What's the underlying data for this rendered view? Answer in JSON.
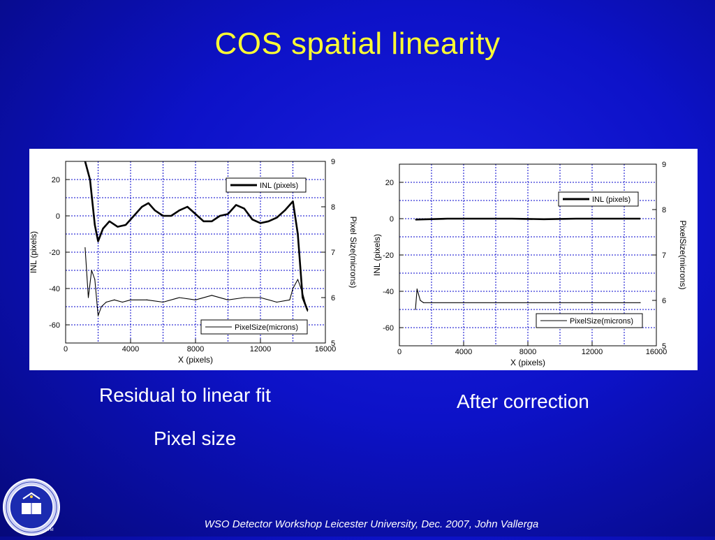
{
  "slide": {
    "title": "COS spatial linearity",
    "caption_left_1": "Residual to linear fit",
    "caption_left_2": "Pixel size",
    "caption_right": "After correction",
    "footer": "WSO Detector Workshop  Leicester University, Dec. 2007, John Vallerga",
    "colors": {
      "title": "#ffff33",
      "text": "#ffffff",
      "background": "#0d12c8",
      "grid": "#0000cc"
    }
  },
  "chart_data": [
    {
      "type": "line",
      "xlabel": "X (pixels)",
      "ylabel": "INL (pixels)",
      "y2label": "Pixel Size(microns)",
      "xlim": [
        0,
        16000
      ],
      "ylim": [
        -70,
        30
      ],
      "y2lim": [
        5,
        9
      ],
      "xticks": [
        "0",
        "4000",
        "8000",
        "12000",
        "16000"
      ],
      "yticks": [
        "20",
        "0",
        "-20",
        "-40",
        "-60"
      ],
      "y2ticks": [
        "9",
        "8",
        "7",
        "6",
        "5"
      ],
      "grid": true,
      "legend": [
        "INL (pixels)",
        "PixelSize(microns)"
      ],
      "series": [
        {
          "name": "INL (pixels)",
          "axis": "left",
          "x": [
            1200,
            1500,
            1800,
            2000,
            2300,
            2700,
            3200,
            3700,
            4200,
            4700,
            5100,
            5500,
            6000,
            6500,
            7000,
            7500,
            8000,
            8500,
            9000,
            9500,
            10000,
            10500,
            11000,
            11500,
            12000,
            12500,
            13000,
            13500,
            14000,
            14300,
            14600,
            14900
          ],
          "y": [
            30,
            20,
            -5,
            -14,
            -7,
            -3,
            -6,
            -5,
            0,
            5,
            7,
            3,
            0,
            0,
            3,
            5,
            1,
            -3,
            -3,
            0,
            1,
            6,
            4,
            -2,
            -4,
            -3,
            -1,
            3,
            8,
            -10,
            -45,
            -52
          ]
        },
        {
          "name": "PixelSize(microns)",
          "axis": "right",
          "x": [
            1200,
            1400,
            1600,
            1800,
            2000,
            2200,
            2500,
            3000,
            3500,
            4000,
            5000,
            6000,
            7000,
            8000,
            9000,
            10000,
            11000,
            12000,
            13000,
            13800,
            14000,
            14300,
            14600,
            14900
          ],
          "y": [
            7.1,
            6.0,
            6.6,
            6.4,
            5.6,
            5.8,
            5.9,
            5.95,
            5.9,
            5.95,
            5.95,
            5.9,
            6.0,
            5.95,
            6.05,
            5.95,
            6.0,
            6.0,
            5.9,
            5.95,
            6.2,
            6.4,
            6.1,
            5.7
          ]
        }
      ]
    },
    {
      "type": "line",
      "xlabel": "X (pixels)",
      "ylabel": "INL (pixels)",
      "y2label": "PixelSize(microns)",
      "xlim": [
        0,
        16000
      ],
      "ylim": [
        -70,
        30
      ],
      "y2lim": [
        5,
        9
      ],
      "xticks": [
        "0",
        "4000",
        "8000",
        "12000",
        "16000"
      ],
      "yticks": [
        "20",
        "0",
        "-20",
        "-40",
        "-60"
      ],
      "y2ticks": [
        "9",
        "8",
        "7",
        "6",
        "5"
      ],
      "grid": true,
      "legend": [
        "INL (pixels)",
        "PixelSize(microns)"
      ],
      "series": [
        {
          "name": "INL (pixels)",
          "axis": "left",
          "x": [
            1000,
            3000,
            5000,
            7000,
            9000,
            11000,
            13000,
            15000
          ],
          "y": [
            -0.5,
            0,
            0,
            0,
            -0.3,
            0,
            0,
            0
          ]
        },
        {
          "name": "PixelSize(microns)",
          "axis": "right",
          "x": [
            1000,
            1100,
            1300,
            1500,
            2000,
            4000,
            6000,
            8000,
            10000,
            12000,
            14000,
            15000
          ],
          "y": [
            5.8,
            6.25,
            6.0,
            5.95,
            5.95,
            5.95,
            5.95,
            5.95,
            5.95,
            5.95,
            5.95,
            5.95
          ]
        }
      ]
    }
  ]
}
